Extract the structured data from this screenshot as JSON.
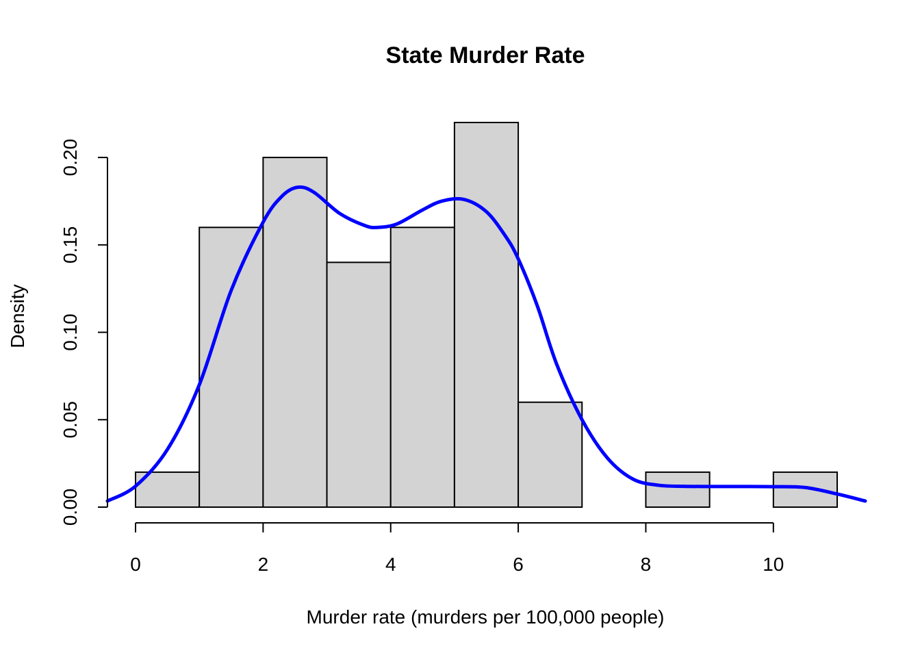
{
  "chart_data": {
    "type": "bar",
    "subtype": "histogram_with_density",
    "title": "State Murder Rate",
    "xlabel": "Murder rate (murders per 100,000 people)",
    "ylabel": "Density",
    "xlim": [
      -0.44,
      11.44
    ],
    "ylim": [
      0,
      0.22
    ],
    "x_ticks": [
      0,
      2,
      4,
      6,
      8,
      10
    ],
    "x_tick_labels": [
      "0",
      "2",
      "4",
      "6",
      "8",
      "10"
    ],
    "y_ticks": [
      0.0,
      0.05,
      0.1,
      0.15,
      0.2
    ],
    "y_tick_labels": [
      "0.00",
      "0.05",
      "0.10",
      "0.15",
      "0.20"
    ],
    "bins": [
      {
        "start": 0,
        "end": 1,
        "density": 0.02
      },
      {
        "start": 1,
        "end": 2,
        "density": 0.16
      },
      {
        "start": 2,
        "end": 3,
        "density": 0.2
      },
      {
        "start": 3,
        "end": 4,
        "density": 0.14
      },
      {
        "start": 4,
        "end": 5,
        "density": 0.16
      },
      {
        "start": 5,
        "end": 6,
        "density": 0.22
      },
      {
        "start": 6,
        "end": 7,
        "density": 0.06
      },
      {
        "start": 7,
        "end": 8,
        "density": 0.0
      },
      {
        "start": 8,
        "end": 9,
        "density": 0.02
      },
      {
        "start": 9,
        "end": 10,
        "density": 0.0
      },
      {
        "start": 10,
        "end": 11,
        "density": 0.02
      }
    ],
    "density_curve": {
      "x": [
        -0.44,
        0.0,
        0.5,
        1.0,
        1.5,
        2.0,
        2.3,
        2.55,
        2.8,
        3.2,
        3.6,
        3.8,
        4.1,
        4.5,
        4.8,
        5.15,
        5.5,
        5.8,
        6.0,
        6.3,
        6.6,
        7.0,
        7.4,
        7.8,
        8.2,
        8.6,
        9.0,
        9.5,
        10.0,
        10.5,
        11.0,
        11.44
      ],
      "y": [
        0.0035,
        0.012,
        0.033,
        0.07,
        0.124,
        0.163,
        0.178,
        0.183,
        0.18,
        0.168,
        0.161,
        0.16,
        0.162,
        0.17,
        0.175,
        0.176,
        0.169,
        0.155,
        0.142,
        0.115,
        0.082,
        0.05,
        0.028,
        0.016,
        0.0125,
        0.0119,
        0.0118,
        0.0118,
        0.0117,
        0.0112,
        0.0075,
        0.0035
      ]
    },
    "colors": {
      "bar_fill": "#d3d3d3",
      "bar_stroke": "#000000",
      "density_line": "#0000ff"
    },
    "grid": false,
    "legend": "none"
  }
}
